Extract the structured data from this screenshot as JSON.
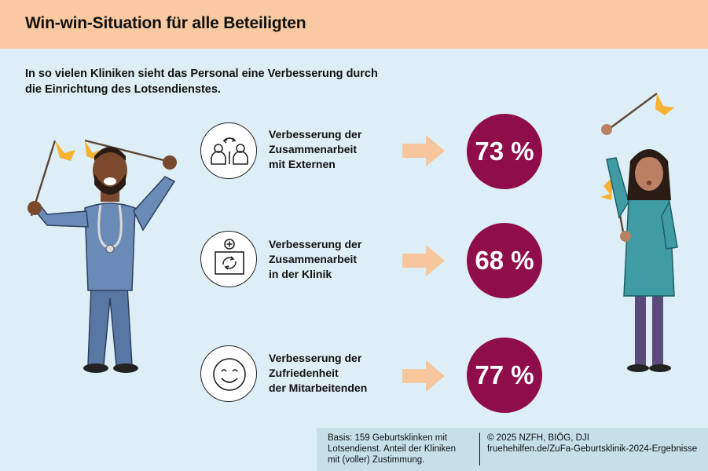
{
  "header": {
    "title": "Win-win-Situation für alle Beteiligten"
  },
  "intro": {
    "text": "In so vielen Kliniken sieht das Personal eine Verbesserung durch die Einrichtung des Lotsendienstes."
  },
  "chart_data": {
    "type": "table",
    "unit": "%",
    "items": [
      {
        "label_lines": [
          "Verbesserung der",
          "Zusammenarbeit",
          "mit Externen"
        ],
        "value": 73,
        "display": "73 %",
        "icon": "people-exchange-icon"
      },
      {
        "label_lines": [
          "Verbesserung der",
          "Zusammenarbeit",
          "in der Klinik"
        ],
        "value": 68,
        "display": "68 %",
        "icon": "clinic-cycle-icon"
      },
      {
        "label_lines": [
          "Verbesserung der",
          "Zufriedenheit",
          "der Mitarbeitenden"
        ],
        "value": 77,
        "display": "77 %",
        "icon": "smiley-icon"
      }
    ]
  },
  "footer": {
    "basis": "Basis: 159 Geburtsklinken mit Lotsendienst. Anteil der Kliniken mit (voller) Zustimmung.",
    "credit_line1": "© 2025 NZFH, BIÖG, DJI",
    "credit_line2": "fruehehilfen.de/ZuFa-Geburtsklinik-2024-Ergebnisse"
  },
  "colors": {
    "header_bg": "#f9c9a2",
    "page_bg": "#ddeef6",
    "bubble": "#8e0d4a",
    "arrow": "#f8c69c",
    "flag": "#f7b233",
    "footer_bg": "#c6dfe9"
  }
}
